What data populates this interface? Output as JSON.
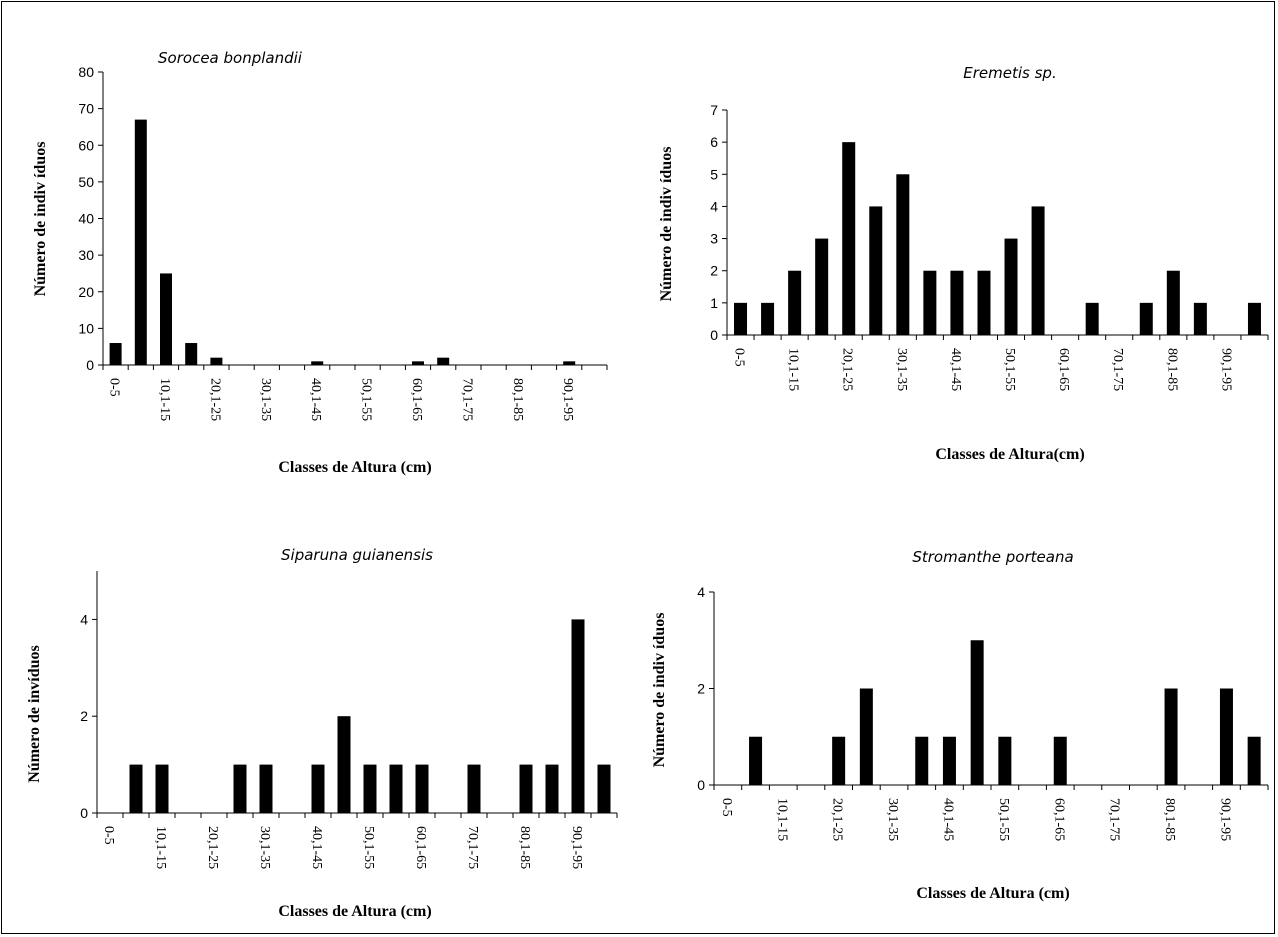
{
  "chart_data": [
    {
      "type": "bar",
      "title": "Sorocea bonplandii",
      "xlabel": "Classes de Altura  (cm)",
      "ylabel": "Número de indiv íduos",
      "ylim": [
        0,
        80
      ],
      "yticks": [
        0,
        10,
        20,
        30,
        40,
        50,
        60,
        70,
        80
      ],
      "grid": false,
      "categories": [
        "0-5",
        "5,1-10",
        "10,1-15",
        "15,1-20",
        "20,1-25",
        "25,1-30",
        "30,1-35",
        "35,1-40",
        "40,1-45",
        "45,1-50",
        "50,1-55",
        "55,1-60",
        "60,1-65",
        "65,1-70",
        "70,1-75",
        "75,1-80",
        "80,1-85",
        "85,1-90",
        "90,1-95",
        ">95"
      ],
      "shown_tick_labels": [
        "0-5",
        "10,1-15",
        "20,1-25",
        "30,1-35",
        "40,1-45",
        "50,1-55",
        "60,1-65",
        "70,1-75",
        "80,1-85",
        "90,1-95"
      ],
      "values": [
        6,
        67,
        25,
        6,
        2,
        0,
        0,
        0,
        1,
        0,
        0,
        0,
        1,
        2,
        0,
        0,
        0,
        0,
        1,
        0
      ]
    },
    {
      "type": "bar",
      "title": "Eremetis sp.",
      "xlabel": "Classes de Altura(cm)",
      "ylabel": "Número de indiv íduos",
      "ylim": [
        0,
        7
      ],
      "yticks": [
        0,
        1,
        2,
        3,
        4,
        5,
        6,
        7
      ],
      "grid": false,
      "categories": [
        "0-5",
        "5,1-10",
        "10,1-15",
        "15,1-20",
        "20,1-25",
        "25,1-30",
        "30,1-35",
        "35,1-40",
        "40,1-45",
        "45,1-50",
        "50,1-55",
        "55,1-60",
        "60,1-65",
        "65,1-70",
        "70,1-75",
        "75,1-80",
        "80,1-85",
        "85,1-90",
        "90,1-95",
        ">95"
      ],
      "shown_tick_labels": [
        "0-5",
        "10,1-15",
        "20,1-25",
        "30,1-35",
        "40,1-45",
        "50,1-55",
        "60,1-65",
        "70,1-75",
        "80,1-85",
        "90,1-95"
      ],
      "values": [
        1,
        1,
        2,
        3,
        6,
        4,
        5,
        2,
        2,
        2,
        3,
        4,
        0,
        1,
        0,
        1,
        2,
        1,
        0,
        1
      ]
    },
    {
      "type": "bar",
      "title": "Siparuna guianensis",
      "xlabel": "Classes de Altura  (cm)",
      "ylabel": "Número de invíduos",
      "ylim": [
        0,
        5
      ],
      "yticks": [
        0,
        2,
        4
      ],
      "grid": false,
      "categories": [
        "0-5",
        "5,1-10",
        "10,1-15",
        "15,1-20",
        "20,1-25",
        "25,1-30",
        "30,1-35",
        "35,1-40",
        "40,1-45",
        "45,1-50",
        "50,1-55",
        "55,1-60",
        "60,1-65",
        "65,1-70",
        "70,1-75",
        "75,1-80",
        "80,1-85",
        "85,1-90",
        "90,1-95",
        ">95"
      ],
      "shown_tick_labels": [
        "0-5",
        "10,1-15",
        "20,1-25",
        "30,1-35",
        "40,1-45",
        "50,1-55",
        "60,1-65",
        "70,1-75",
        "80,1-85",
        "90,1-95"
      ],
      "values": [
        0,
        1,
        1,
        0,
        0,
        1,
        1,
        0,
        1,
        2,
        1,
        1,
        1,
        0,
        1,
        0,
        1,
        1,
        4,
        1
      ]
    },
    {
      "type": "bar",
      "title": "Stromanthe porteana",
      "xlabel": "Classes de Altura  (cm)",
      "ylabel": "Número de indiv íduos",
      "ylim": [
        0,
        4
      ],
      "yticks": [
        0,
        2,
        4
      ],
      "grid": false,
      "categories": [
        "0-5",
        "5,1-10",
        "10,1-15",
        "15,1-20",
        "20,1-25",
        "25,1-30",
        "30,1-35",
        "35,1-40",
        "40,1-45",
        "45,1-50",
        "50,1-55",
        "55,1-60",
        "60,1-65",
        "65,1-70",
        "70,1-75",
        "75,1-80",
        "80,1-85",
        "85,1-90",
        "90,1-95",
        ">95"
      ],
      "shown_tick_labels": [
        "0-5",
        "10,1-15",
        "20,1-25",
        "30,1-35",
        "40,1-45",
        "50,1-55",
        "60,1-65",
        "70,1-75",
        "80,1-85",
        "90,1-95"
      ],
      "values": [
        0,
        1,
        0,
        0,
        1,
        2,
        0,
        1,
        1,
        3,
        1,
        0,
        1,
        0,
        0,
        0,
        2,
        0,
        2,
        1
      ]
    }
  ]
}
